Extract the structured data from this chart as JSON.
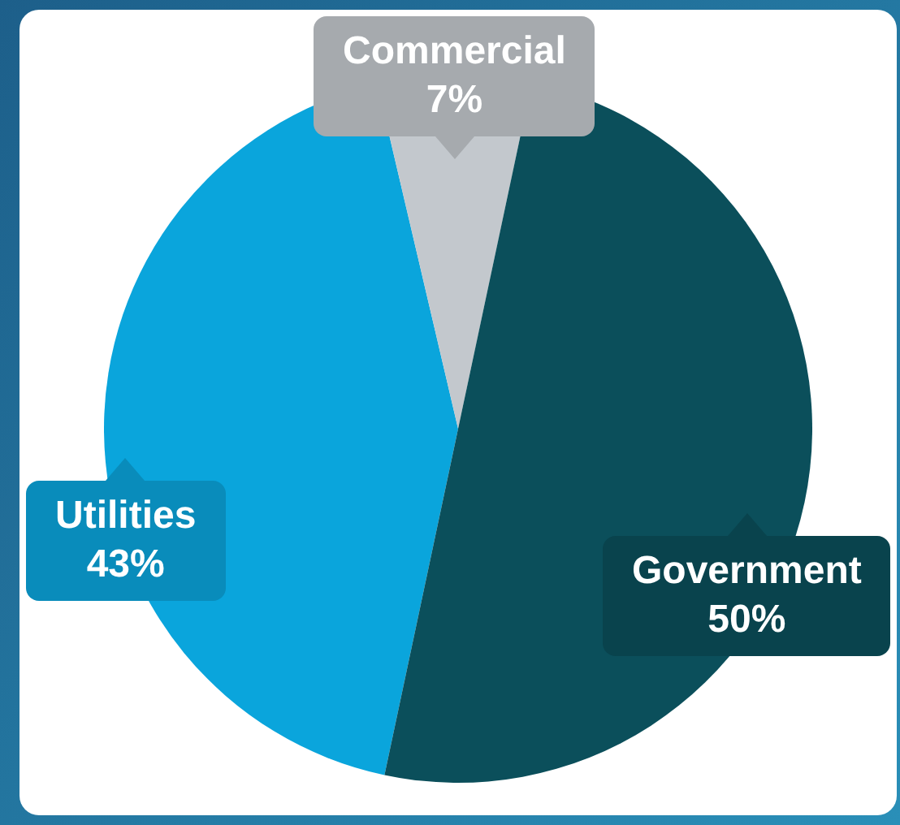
{
  "chart_data": {
    "type": "pie",
    "categories": [
      "Utilities",
      "Commercial",
      "Government"
    ],
    "values": [
      43,
      7,
      50
    ],
    "colors": [
      "#0aa5dc",
      "#c3c8cd",
      "#0b4f5b"
    ],
    "value_labels": [
      "43%",
      "7%",
      "50%"
    ],
    "legend": false
  }
}
